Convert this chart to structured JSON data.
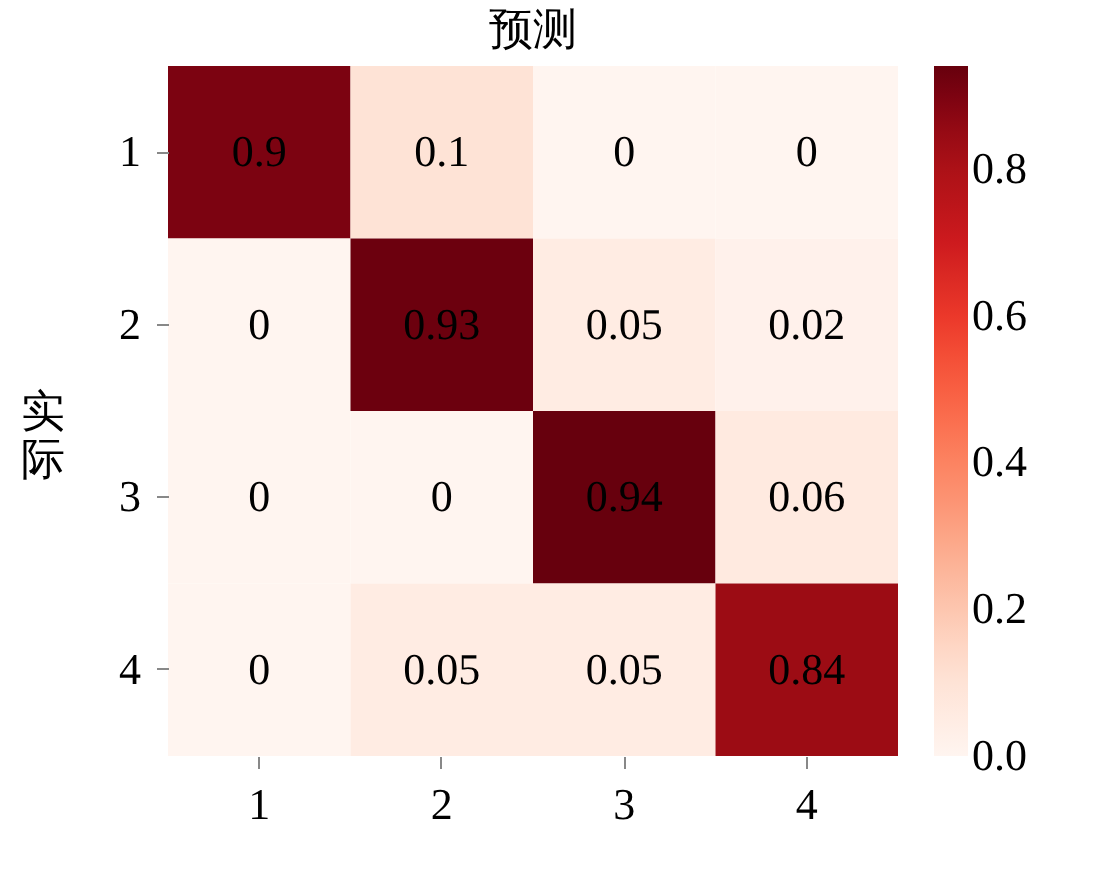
{
  "chart_data": {
    "type": "heatmap",
    "title": "预测",
    "ylabel": "实际",
    "categories": [
      "1",
      "2",
      "3",
      "4"
    ],
    "y_categories": [
      "1",
      "2",
      "3",
      "4"
    ],
    "cells": [
      [
        0.9,
        0.1,
        0,
        0
      ],
      [
        0,
        0.93,
        0.05,
        0.02
      ],
      [
        0,
        0,
        0.94,
        0.06
      ],
      [
        0,
        0.05,
        0.05,
        0.84
      ]
    ],
    "data_labels": true,
    "clim": [
      0,
      0.94
    ],
    "cticks": [
      {
        "value": 0,
        "label": "0.0"
      },
      0.2,
      0.4,
      0.6,
      0.8
    ]
  }
}
